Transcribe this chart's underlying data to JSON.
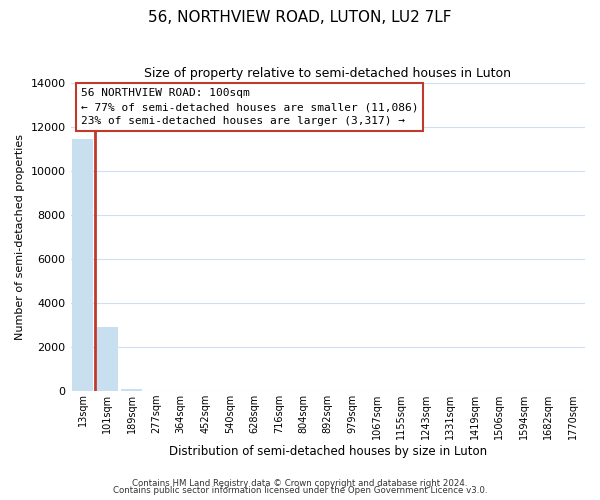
{
  "title": "56, NORTHVIEW ROAD, LUTON, LU2 7LF",
  "subtitle": "Size of property relative to semi-detached houses in Luton",
  "xlabel": "Distribution of semi-detached houses by size in Luton",
  "ylabel": "Number of semi-detached properties",
  "bar_labels": [
    "13sqm",
    "101sqm",
    "189sqm",
    "277sqm",
    "364sqm",
    "452sqm",
    "540sqm",
    "628sqm",
    "716sqm",
    "804sqm",
    "892sqm",
    "979sqm",
    "1067sqm",
    "1155sqm",
    "1243sqm",
    "1331sqm",
    "1419sqm",
    "1506sqm",
    "1594sqm",
    "1682sqm",
    "1770sqm"
  ],
  "bar_values": [
    11450,
    2900,
    70,
    0,
    0,
    0,
    0,
    0,
    0,
    0,
    0,
    0,
    0,
    0,
    0,
    0,
    0,
    0,
    0,
    0,
    0
  ],
  "property_bar_index": 1,
  "vline_color": "#c0392b",
  "normal_color": "#c8dff0",
  "ylim": [
    0,
    14000
  ],
  "yticks": [
    0,
    2000,
    4000,
    6000,
    8000,
    10000,
    12000,
    14000
  ],
  "annotation_title": "56 NORTHVIEW ROAD: 100sqm",
  "annotation_line1": "← 77% of semi-detached houses are smaller (11,086)",
  "annotation_line2": "23% of semi-detached houses are larger (3,317) →",
  "footer1": "Contains HM Land Registry data © Crown copyright and database right 2024.",
  "footer2": "Contains public sector information licensed under the Open Government Licence v3.0.",
  "grid_color": "#cddff0",
  "background_color": "#ffffff",
  "annotation_box_edge": "#c0392b",
  "vline_x": 1.5
}
